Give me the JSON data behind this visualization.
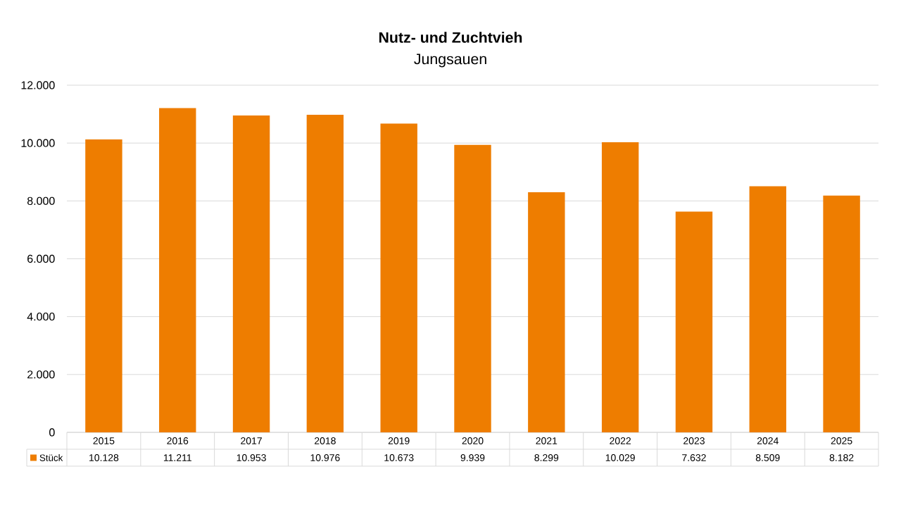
{
  "chart_data": {
    "type": "bar",
    "title": "Nutz- und Zuchtvieh",
    "subtitle": "Jungsauen",
    "categories": [
      "2015",
      "2016",
      "2017",
      "2018",
      "2019",
      "2020",
      "2021",
      "2022",
      "2023",
      "2024",
      "2025"
    ],
    "series": [
      {
        "name": "Stück",
        "color": "#ee7d00",
        "values": [
          10128,
          11211,
          10953,
          10976,
          10673,
          9939,
          8299,
          10029,
          7632,
          8509,
          8182
        ],
        "value_labels": [
          "10.128",
          "11.211",
          "10.953",
          "10.976",
          "10.673",
          "9.939",
          "8.299",
          "10.029",
          "7.632",
          "8.509",
          "8.182"
        ]
      }
    ],
    "ylim": [
      0,
      12000
    ],
    "yticks": [
      0,
      {
        "value": 2000,
        "label": "2.000"
      },
      {
        "value": 4000,
        "label": "4.000"
      },
      {
        "value": 6000,
        "label": "6.000"
      },
      {
        "value": 8000,
        "label": "8.000"
      },
      {
        "value": 10000,
        "label": "10.000"
      },
      {
        "value": 12000,
        "label": "12.000"
      }
    ],
    "grid": "y",
    "legend": "bottom"
  }
}
